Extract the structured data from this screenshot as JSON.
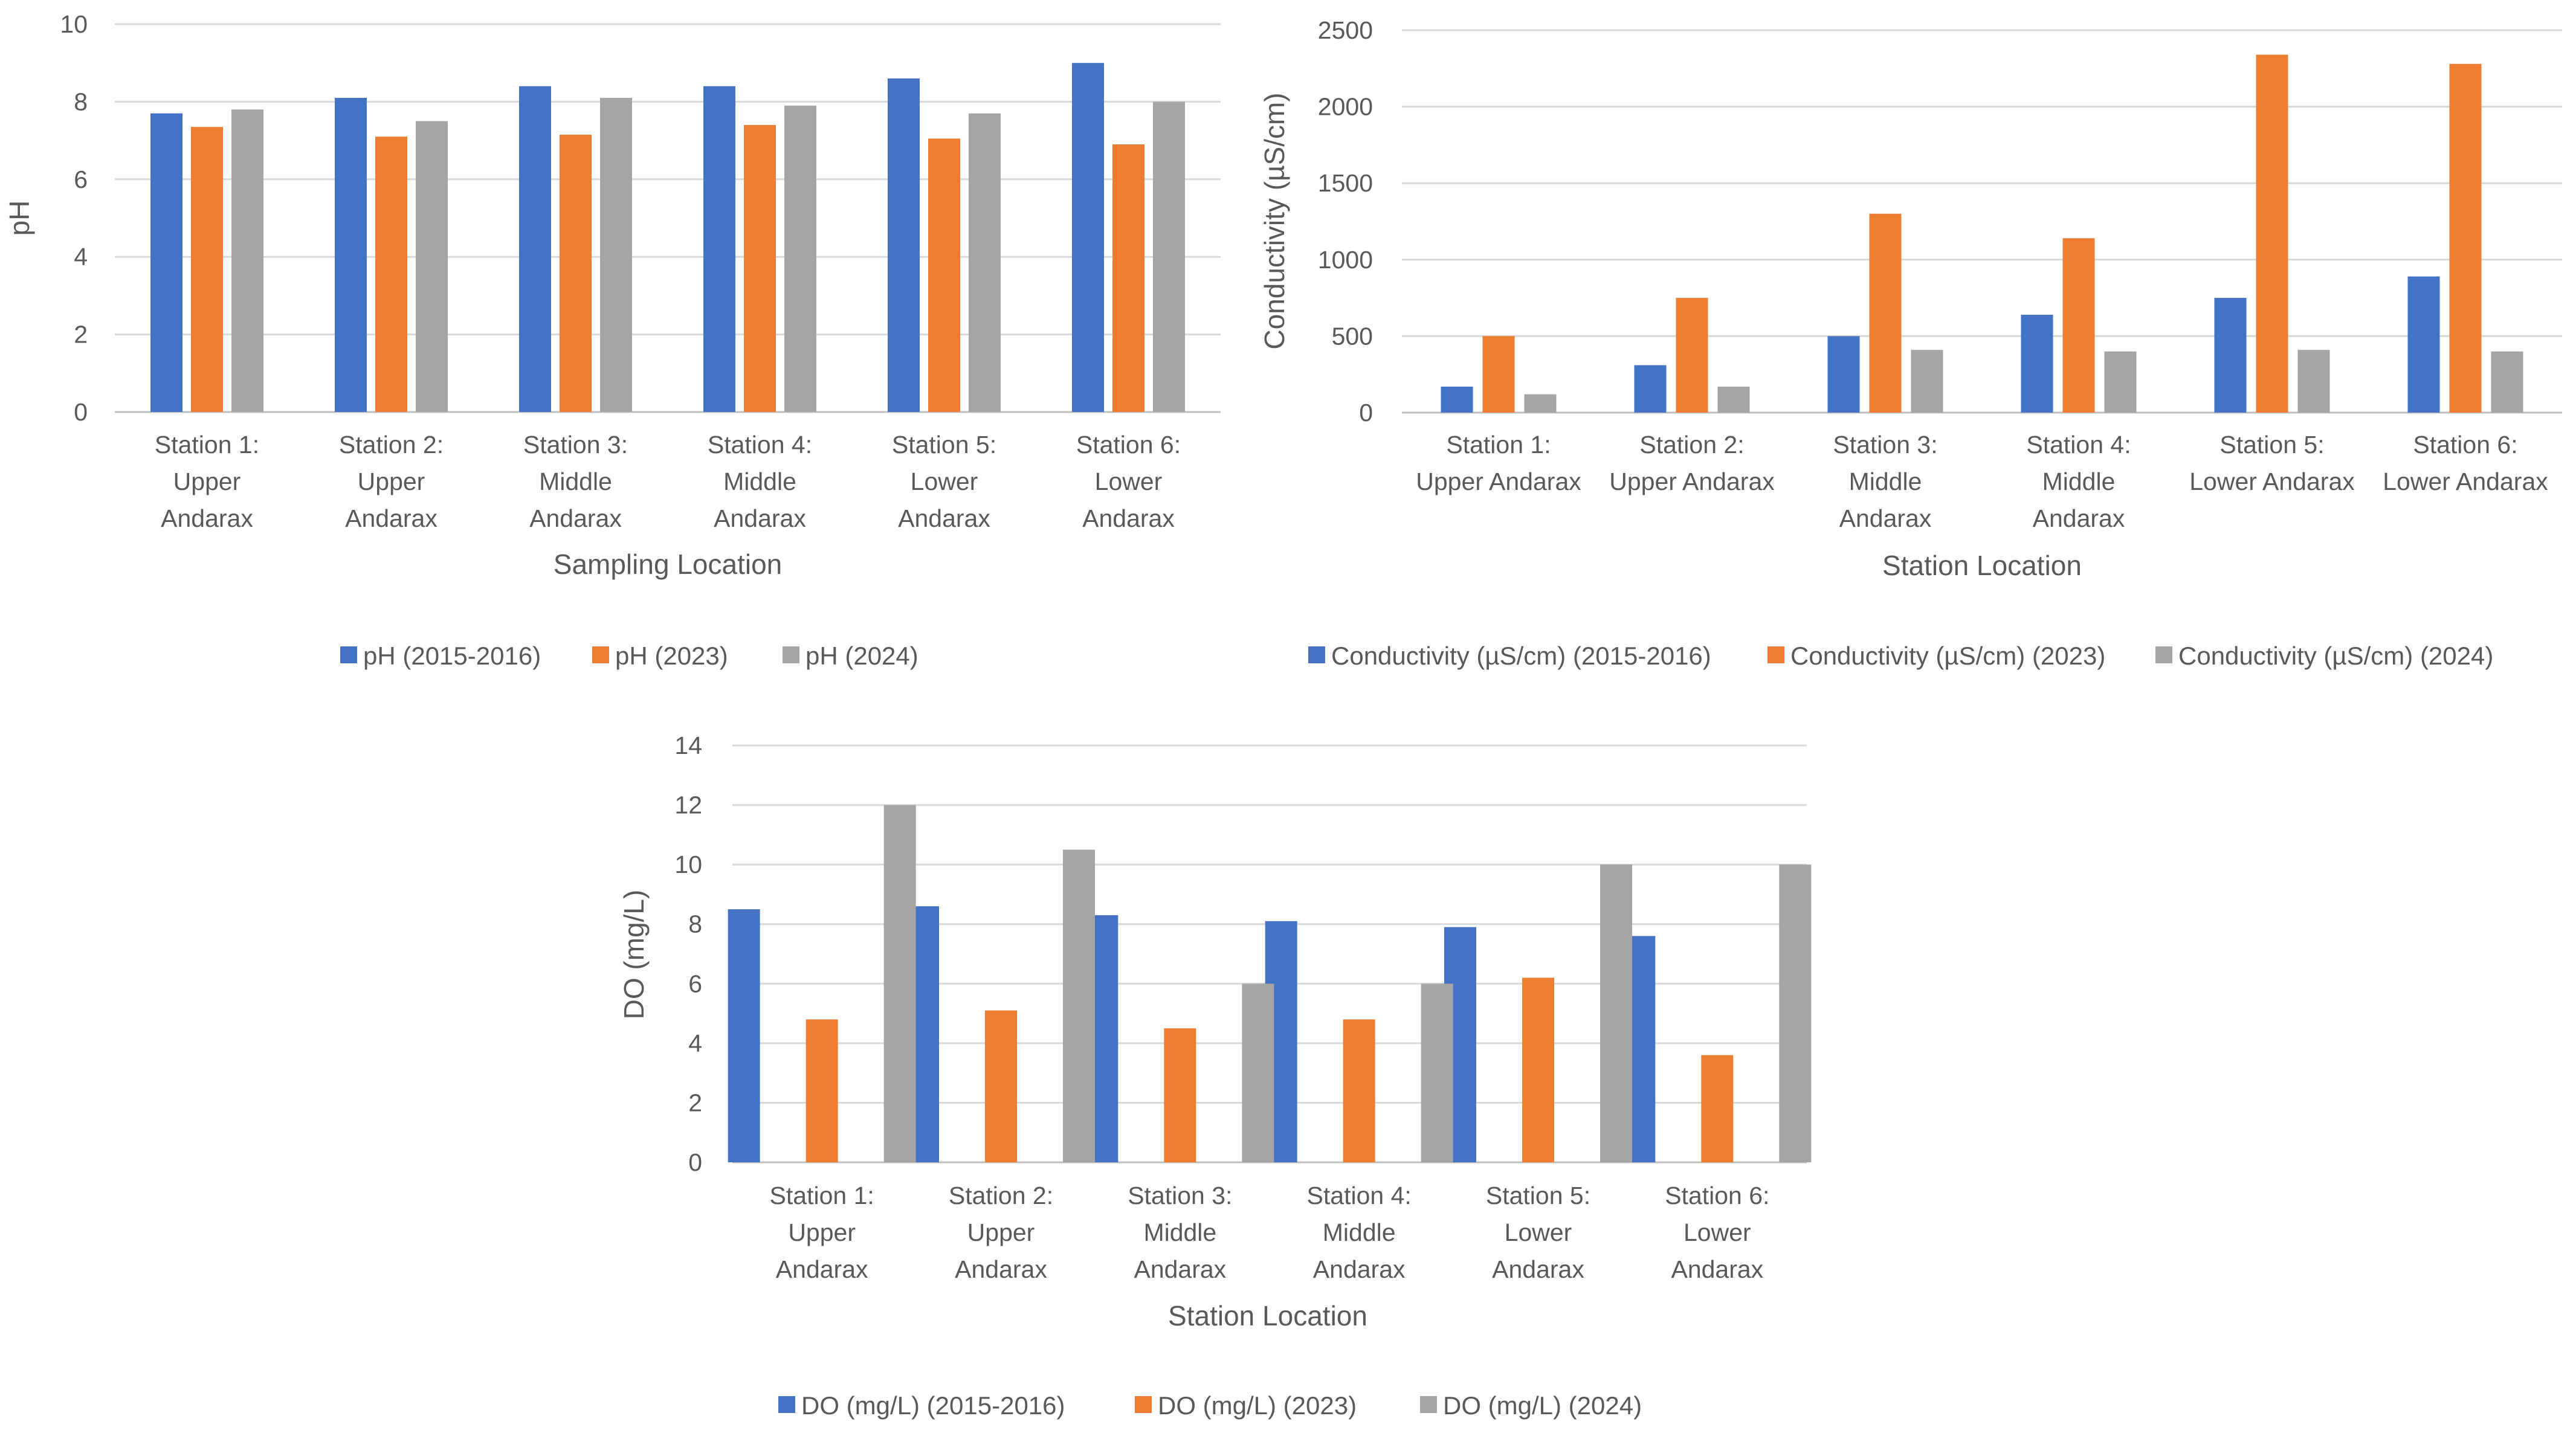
{
  "chart_data": [
    {
      "type": "bar",
      "id": "ph",
      "categories": [
        [
          "Station 1:",
          "Upper",
          "Andarax"
        ],
        [
          "Station 2:",
          "Upper",
          "Andarax"
        ],
        [
          "Station 3:",
          "Middle",
          "Andarax"
        ],
        [
          "Station 4:",
          "Middle",
          "Andarax"
        ],
        [
          "Station 5:",
          "Lower",
          "Andarax"
        ],
        [
          "Station 6:",
          "Lower",
          "Andarax"
        ]
      ],
      "series": [
        {
          "name": "pH (2015-2016)",
          "color": "#4472C4",
          "values": [
            7.7,
            8.1,
            8.4,
            8.4,
            8.6,
            9.0
          ]
        },
        {
          "name": "pH (2023)",
          "color": "#ED7D31",
          "values": [
            7.35,
            7.1,
            7.15,
            7.4,
            7.05,
            6.9
          ]
        },
        {
          "name": "pH (2024)",
          "color": "#A5A5A5",
          "values": [
            7.8,
            7.5,
            8.1,
            7.9,
            7.7,
            8.0
          ]
        }
      ],
      "title": "",
      "xlabel": "Sampling Location",
      "ylabel": "pH",
      "ylim": [
        0,
        10
      ],
      "yticks": [
        0,
        2,
        4,
        6,
        8,
        10
      ],
      "legend": "bottom"
    },
    {
      "type": "bar",
      "id": "conductivity",
      "categories": [
        [
          "Station 1:",
          "Upper Andarax"
        ],
        [
          "Station 2:",
          "Upper Andarax"
        ],
        [
          "Station 3:",
          "Middle",
          "Andarax"
        ],
        [
          "Station 4:",
          "Middle",
          "Andarax"
        ],
        [
          "Station 5:",
          "Lower Andarax"
        ],
        [
          "Station 6:",
          "Lower Andarax"
        ]
      ],
      "series": [
        {
          "name": "Conductivity (µS/cm) (2015-2016)",
          "color": "#4472C4",
          "values": [
            170,
            310,
            500,
            640,
            750,
            890
          ]
        },
        {
          "name": "Conductivity (µS/cm) (2023)",
          "color": "#ED7D31",
          "values": [
            500,
            750,
            1300,
            1140,
            2340,
            2280
          ]
        },
        {
          "name": "Conductivity (µS/cm) (2024)",
          "color": "#A5A5A5",
          "values": [
            120,
            170,
            410,
            400,
            410,
            400
          ]
        }
      ],
      "title": "",
      "xlabel": "Station Location",
      "ylabel": "Conductivity (µS/cm)",
      "ylim": [
        0,
        2500
      ],
      "yticks": [
        0,
        500,
        1000,
        1500,
        2000,
        2500
      ],
      "legend": "bottom"
    },
    {
      "type": "bar",
      "id": "do",
      "categories": [
        [
          "Station 1:",
          "Upper",
          "Andarax"
        ],
        [
          "Station 2:",
          "Upper",
          "Andarax"
        ],
        [
          "Station 3:",
          "Middle",
          "Andarax"
        ],
        [
          "Station 4:",
          "Middle",
          "Andarax"
        ],
        [
          "Station 5:",
          "Lower",
          "Andarax"
        ],
        [
          "Station 6:",
          "Lower",
          "Andarax"
        ]
      ],
      "series": [
        {
          "name": "DO (mg/L) (2015-2016)",
          "color": "#4472C4",
          "values": [
            8.5,
            8.6,
            8.3,
            8.1,
            7.9,
            7.6
          ]
        },
        {
          "name": "DO (mg/L) (2023)",
          "color": "#ED7D31",
          "values": [
            4.8,
            5.1,
            4.5,
            4.8,
            6.2,
            3.6
          ]
        },
        {
          "name": "DO (mg/L) (2024)",
          "color": "#A5A5A5",
          "values": [
            12,
            10.5,
            6,
            6,
            10,
            10
          ]
        }
      ],
      "title": "",
      "xlabel": "Station Location",
      "ylabel": "DO (mg/L)",
      "ylim": [
        0,
        14
      ],
      "yticks": [
        0,
        2,
        4,
        6,
        8,
        10,
        12,
        14
      ],
      "legend": "bottom"
    }
  ]
}
